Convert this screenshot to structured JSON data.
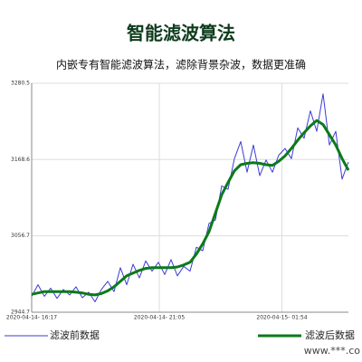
{
  "chart_data": {
    "type": "line",
    "title": "智能滤波算法",
    "subtitle": "内嵌专有智能滤波算法，滤除背景杂波，数据更准确",
    "watermark": "www.***.co",
    "x": [
      0,
      2,
      4,
      6,
      8,
      10,
      12,
      14,
      16,
      18,
      20,
      22,
      24,
      26,
      28,
      30,
      32,
      34,
      36,
      38,
      40,
      42,
      44,
      46,
      48,
      50,
      52,
      54,
      56,
      58,
      60,
      62,
      64,
      66,
      68,
      70,
      72,
      74,
      76,
      78,
      80,
      82,
      84,
      86,
      88,
      90,
      92,
      94,
      96,
      98,
      100
    ],
    "xlim": [
      0,
      100
    ],
    "xticks": [
      {
        "value": 0,
        "label": "2020-04-14- 16:17"
      },
      {
        "value": 40.3,
        "label": "2020-04-14- 21:05"
      },
      {
        "value": 79,
        "label": "2020-04-15- 01:54"
      }
    ],
    "ylim": [
      2944.7,
      3280.5
    ],
    "yticks": [
      2944.7,
      3056.7,
      3168.6,
      3280.5
    ],
    "grid": true,
    "series": [
      {
        "name": "滤波前数据",
        "color": "#3b3bd6",
        "width": 1,
        "values": [
          2968,
          2985,
          2968,
          2980,
          2965,
          2978,
          2970,
          2982,
          2966,
          2974,
          2960,
          2978,
          2990,
          2975,
          3010,
          2985,
          3015,
          2995,
          3020,
          3005,
          3018,
          3000,
          3022,
          2998,
          3012,
          3005,
          3040,
          3035,
          3075,
          3080,
          3130,
          3125,
          3170,
          3195,
          3150,
          3190,
          3145,
          3168,
          3150,
          3175,
          3185,
          3170,
          3215,
          3200,
          3240,
          3210,
          3265,
          3190,
          3210,
          3140,
          3165
        ]
      },
      {
        "name": "滤波后数据",
        "color": "#0b7a1a",
        "width": 3,
        "values": [
          2971,
          2973,
          2975,
          2975,
          2975,
          2975,
          2975,
          2974,
          2973,
          2971,
          2970,
          2972,
          2976,
          2982,
          2990,
          2998,
          3002,
          3006,
          3009,
          3010,
          3010,
          3010,
          3010,
          3011,
          3014,
          3018,
          3030,
          3045,
          3063,
          3090,
          3117,
          3135,
          3152,
          3161,
          3163,
          3164,
          3163,
          3161,
          3160,
          3166,
          3174,
          3185,
          3197,
          3208,
          3218,
          3226,
          3220,
          3205,
          3190,
          3170,
          3153
        ]
      }
    ]
  }
}
